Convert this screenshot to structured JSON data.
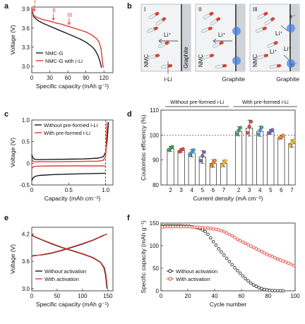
{
  "colors": {
    "black": "#1a1a1a",
    "red": "#e23b2e",
    "bar": "#ffffff",
    "blueGlow": "#3f7fe0",
    "pinkDot": "#f4a3a3"
  },
  "panel_labels": [
    "a",
    "b",
    "c",
    "d",
    "e",
    "f"
  ],
  "chart_data": [
    {
      "id": "a",
      "type": "line",
      "xlabel": "Specific capacity (mAh g⁻¹)",
      "ylabel": "Voltage (V)",
      "xlim": [
        0,
        135
      ],
      "ylim": [
        2.9,
        3.93
      ],
      "xticks": [
        0,
        30,
        60,
        90,
        120
      ],
      "yticks": [
        3.0,
        3.3,
        3.6,
        3.9
      ],
      "legend_position": "bottom-left",
      "annotations": [
        {
          "text": "I",
          "x": 4,
          "y": 3.91
        },
        {
          "text": "II",
          "x": 36,
          "y": 3.77
        },
        {
          "text": "III",
          "x": 62,
          "y": 3.7
        }
      ],
      "series": [
        {
          "name": "NMC-G",
          "color": "#1a1a1a",
          "x": [
            0,
            3,
            10,
            20,
            30,
            40,
            50,
            60,
            70,
            80,
            90,
            100,
            105,
            110,
            113,
            115,
            116
          ],
          "y": [
            3.9,
            3.78,
            3.72,
            3.67,
            3.63,
            3.59,
            3.55,
            3.51,
            3.47,
            3.43,
            3.38,
            3.31,
            3.26,
            3.17,
            3.09,
            3.02,
            2.98
          ]
        },
        {
          "name": "NMC-G with i-Li",
          "color": "#e23b2e",
          "x": [
            0,
            3,
            10,
            20,
            30,
            40,
            50,
            60,
            70,
            80,
            90,
            100,
            108,
            112,
            115,
            117,
            118,
            119
          ],
          "y": [
            3.9,
            3.8,
            3.76,
            3.73,
            3.71,
            3.68,
            3.66,
            3.63,
            3.6,
            3.57,
            3.54,
            3.49,
            3.43,
            3.38,
            3.28,
            3.12,
            3.03,
            2.98
          ]
        }
      ]
    },
    {
      "id": "b",
      "type": "diagram",
      "subpanels": [
        {
          "numeral": "I",
          "left": "NMC",
          "right": "Graphite",
          "arrow_label": "Li⁺",
          "below": "i-Li"
        },
        {
          "numeral": "II",
          "left": "NMC",
          "arrow_label": "Li⁺",
          "below": "Graphite"
        },
        {
          "numeral": "III",
          "left": "NMC",
          "labels": [
            "Li⁺",
            "e⁻",
            "Li⁺",
            "e⁻",
            "Li⁺"
          ],
          "below": "Graphite"
        }
      ]
    },
    {
      "id": "c",
      "type": "line",
      "xlabel": "Capacity (mAh cm⁻²)",
      "ylabel": "Voltage (V)",
      "xlim": [
        0,
        1.1
      ],
      "ylim": [
        -0.5,
        1.0
      ],
      "xticks": [
        0,
        0.5,
        1.0
      ],
      "yticks": [
        -0.5,
        0,
        0.5,
        1.0
      ],
      "vline_x": 1.0,
      "legend_position": "top-left",
      "series": [
        {
          "name": "Without pre-formed i-Li",
          "color": "#1a1a1a",
          "branches": [
            {
              "x": [
                0,
                0.02,
                0.05,
                0.1,
                0.3,
                0.5,
                0.7,
                0.9,
                0.97,
                1.0,
                1.02,
                1.04
              ],
              "y": [
                0.2,
                0.11,
                0.09,
                0.085,
                0.09,
                0.095,
                0.1,
                0.12,
                0.15,
                0.25,
                0.5,
                0.95
              ]
            },
            {
              "x": [
                0,
                0.02,
                0.05,
                0.1,
                0.3,
                0.5,
                0.7,
                0.9,
                1.0
              ],
              "y": [
                -0.4,
                -0.33,
                -0.3,
                -0.28,
                -0.26,
                -0.25,
                -0.24,
                -0.235,
                -0.23
              ]
            }
          ]
        },
        {
          "name": "With pre-formed i-Li",
          "color": "#e23b2e",
          "branches": [
            {
              "x": [
                0,
                0.02,
                0.05,
                0.1,
                0.3,
                0.5,
                0.7,
                0.9,
                0.97,
                1.0,
                1.01,
                1.02
              ],
              "y": [
                0.1,
                0.04,
                0.035,
                0.035,
                0.035,
                0.04,
                0.045,
                0.05,
                0.07,
                0.15,
                0.45,
                0.95
              ]
            },
            {
              "x": [
                0,
                0.02,
                0.05,
                0.1,
                0.3,
                0.5,
                0.7,
                0.9,
                1.0
              ],
              "y": [
                -0.12,
                -0.08,
                -0.07,
                -0.065,
                -0.06,
                -0.06,
                -0.06,
                -0.06,
                -0.06
              ]
            }
          ]
        }
      ]
    },
    {
      "id": "d",
      "type": "bar",
      "xlabel": "Current density (mA cm⁻²)",
      "ylabel": "Coulombic efficiency (%)",
      "ylim": [
        80,
        110
      ],
      "yticks": [
        80,
        90,
        100,
        110
      ],
      "reference_line": 100,
      "groups": [
        {
          "label": "Without pre-formed i-Li",
          "categories": [
            "2",
            "3",
            "4",
            "5",
            "6",
            "7"
          ],
          "values": [
            94.5,
            93.8,
            92.8,
            91.2,
            88.6,
            88.6
          ],
          "errors": [
            1.0,
            0.8,
            1.5,
            2.5,
            1.5,
            1.3
          ],
          "colors": [
            "#3fa66a",
            "#e24b3b",
            "#3a9fd6",
            "#7d66b8",
            "#ef8a2b",
            "#f2c233"
          ]
        },
        {
          "label": "With pre-formed i-Li",
          "categories": [
            "2",
            "3",
            "4",
            "5",
            "6",
            "7"
          ],
          "values": [
            101.5,
            102.8,
            101.5,
            101.3,
            99.2,
            96.6
          ],
          "errors": [
            1.8,
            3.2,
            2.0,
            1.0,
            0.8,
            1.5
          ],
          "colors": [
            "#3fa66a",
            "#e24b3b",
            "#3a9fd6",
            "#7d66b8",
            "#ef8a2b",
            "#f2c233"
          ]
        }
      ]
    },
    {
      "id": "e",
      "type": "line",
      "xlabel": "Specific capacity (mAh g⁻¹)",
      "ylabel": "Voltage (V)",
      "xlim": [
        0,
        160
      ],
      "ylim": [
        2.95,
        4.35
      ],
      "xticks": [
        0,
        50,
        100,
        150
      ],
      "yticks": [
        3.0,
        3.6,
        4.2
      ],
      "legend_position": "bottom-left",
      "series": [
        {
          "name": "Without activation",
          "color": "#1a1a1a",
          "branches": [
            {
              "x": [
                0,
                5,
                20,
                40,
                60,
                80,
                100,
                120,
                140,
                145,
                148
              ],
              "y": [
                3.72,
                3.73,
                3.74,
                3.78,
                3.84,
                3.91,
                3.98,
                4.06,
                4.16,
                4.19,
                4.2
              ]
            },
            {
              "x": [
                0,
                5,
                20,
                40,
                60,
                80,
                100,
                120,
                135,
                142,
                145,
                147,
                148
              ],
              "y": [
                4.18,
                4.14,
                4.07,
                3.98,
                3.9,
                3.83,
                3.76,
                3.68,
                3.58,
                3.46,
                3.32,
                3.12,
                3.0
              ]
            }
          ]
        },
        {
          "name": "With activation",
          "color": "#e23b2e",
          "branches": [
            {
              "x": [
                0,
                5,
                20,
                40,
                60,
                80,
                100,
                120,
                140,
                146,
                149
              ],
              "y": [
                3.71,
                3.72,
                3.75,
                3.79,
                3.85,
                3.92,
                3.99,
                4.07,
                4.17,
                4.19,
                4.2
              ]
            },
            {
              "x": [
                0,
                5,
                20,
                40,
                60,
                80,
                100,
                120,
                135,
                143,
                146,
                148,
                149
              ],
              "y": [
                4.2,
                4.15,
                4.08,
                3.99,
                3.91,
                3.84,
                3.77,
                3.69,
                3.59,
                3.47,
                3.33,
                3.13,
                3.0
              ]
            }
          ]
        }
      ]
    },
    {
      "id": "f",
      "type": "scatter",
      "xlabel": "Cycle number",
      "ylabel": "Specific capacity (mAh g⁻¹)",
      "xlim": [
        0,
        100
      ],
      "ylim": [
        0,
        150
      ],
      "xticks": [
        0,
        20,
        40,
        60,
        80,
        100
      ],
      "yticks": [
        0,
        50,
        100,
        150
      ],
      "legend_position": "bottom-left",
      "series": [
        {
          "name": "Without activation",
          "color": "#1a1a1a",
          "marker": "open-circle",
          "x": [
            1,
            3,
            5,
            7,
            9,
            11,
            13,
            15,
            17,
            19,
            21,
            23,
            25,
            27,
            29,
            31,
            33,
            35,
            37,
            39,
            41,
            43,
            45,
            47,
            49,
            51,
            53,
            55,
            57,
            59,
            61,
            63,
            65,
            67,
            69,
            71,
            73,
            75,
            77,
            79,
            81,
            83,
            85,
            87,
            89,
            91
          ],
          "y": [
            143,
            144,
            144,
            144,
            144,
            144,
            144,
            144,
            143,
            143,
            143,
            142,
            141,
            140,
            138,
            135,
            131,
            125,
            117,
            109,
            101,
            93,
            86,
            79,
            72,
            65,
            58,
            51,
            45,
            39,
            33,
            27,
            22,
            17,
            13,
            10,
            7,
            5,
            3,
            2,
            1,
            0.5,
            0.3,
            0.2,
            0.1,
            0.1
          ]
        },
        {
          "name": "With activation",
          "color": "#e23b2e",
          "marker": "open-circle",
          "x": [
            1,
            3,
            5,
            7,
            9,
            11,
            13,
            15,
            17,
            19,
            21,
            23,
            25,
            27,
            29,
            31,
            33,
            35,
            37,
            39,
            41,
            43,
            45,
            47,
            49,
            51,
            53,
            55,
            57,
            59,
            61,
            63,
            65,
            67,
            69,
            71,
            73,
            75,
            77,
            79,
            81,
            83,
            85,
            87,
            89,
            91,
            93,
            95,
            97,
            99
          ],
          "y": [
            141,
            142,
            142,
            142,
            142,
            142,
            142,
            142,
            142,
            142,
            142,
            141,
            141,
            141,
            140,
            140,
            139,
            139,
            138,
            137,
            136,
            135,
            133,
            131,
            128,
            125,
            122,
            118,
            114,
            111,
            108,
            105,
            102,
            99,
            96,
            93,
            90,
            87,
            84,
            81,
            78,
            76,
            73,
            70,
            68,
            66,
            64,
            61,
            59,
            56
          ]
        }
      ]
    }
  ]
}
